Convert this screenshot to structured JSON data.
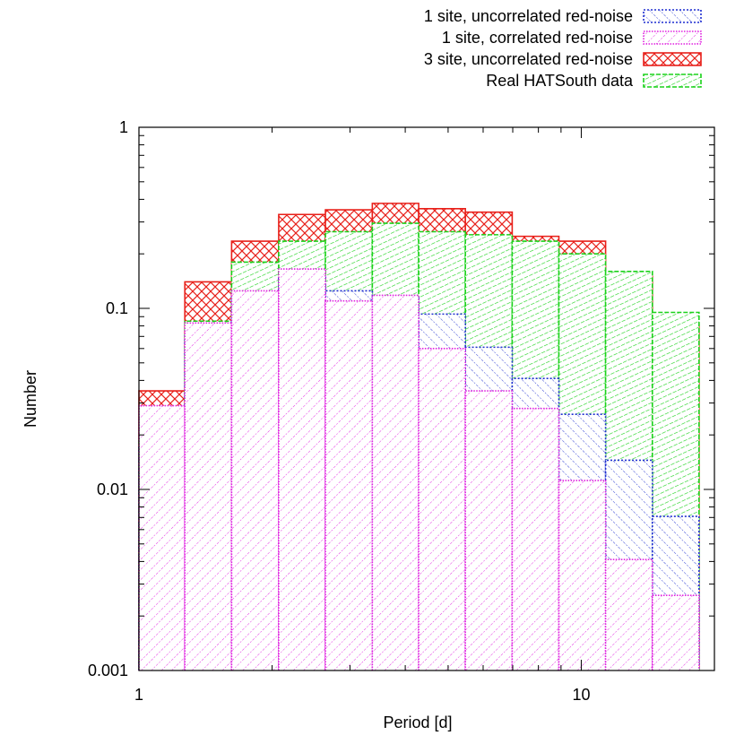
{
  "chart_data": {
    "type": "bar",
    "subtype": "overlapping histogram (step), log-log axes",
    "title": "",
    "xlabel": "Period [d]",
    "ylabel": "Number",
    "x_scale": "log",
    "y_scale": "log",
    "xlim": [
      1,
      20
    ],
    "ylim": [
      0.001,
      1
    ],
    "x_tick_labels": [
      "1",
      "10"
    ],
    "y_tick_labels": [
      "0.001",
      "0.01",
      "0.1",
      "1"
    ],
    "legend_position": "top-right, above plot",
    "grid": false,
    "bin_edges": [
      1,
      1.27,
      1.62,
      2.07,
      2.64,
      3.37,
      4.29,
      5.47,
      6.98,
      8.9,
      11.35,
      14.48,
      18.46
    ],
    "series": [
      {
        "name": "3 site, uncorrelated red-noise",
        "color": "#e8201a",
        "pattern": "crosshatch",
        "values": [
          0.035,
          0.14,
          0.235,
          0.33,
          0.35,
          0.38,
          0.355,
          0.34,
          0.25,
          0.235,
          0.15,
          0.082
        ]
      },
      {
        "name": "Real HATSouth data",
        "color": "#1ad21a",
        "pattern": "dense-hatch",
        "values": [
          0.019,
          0.085,
          0.18,
          0.235,
          0.265,
          0.295,
          0.265,
          0.255,
          0.235,
          0.2,
          0.16,
          0.095
        ]
      },
      {
        "name": "1 site, uncorrelated red-noise",
        "color": "#1f2fd0",
        "pattern": "hatch-backslash",
        "values": [
          0.017,
          0.072,
          0.12,
          0.15,
          0.125,
          0.115,
          0.093,
          0.061,
          0.041,
          0.026,
          0.0145,
          0.0071
        ]
      },
      {
        "name": "1 site, correlated red-noise",
        "color": "#e020e0",
        "pattern": "hatch-slash",
        "values": [
          0.029,
          0.083,
          0.125,
          0.165,
          0.11,
          0.118,
          0.06,
          0.035,
          0.028,
          0.0112,
          0.0041,
          0.0026
        ]
      }
    ],
    "legend_order": [
      "1 site, uncorrelated red-noise",
      "1 site, correlated red-noise",
      "3 site, uncorrelated red-noise",
      "Real HATSouth data"
    ]
  }
}
